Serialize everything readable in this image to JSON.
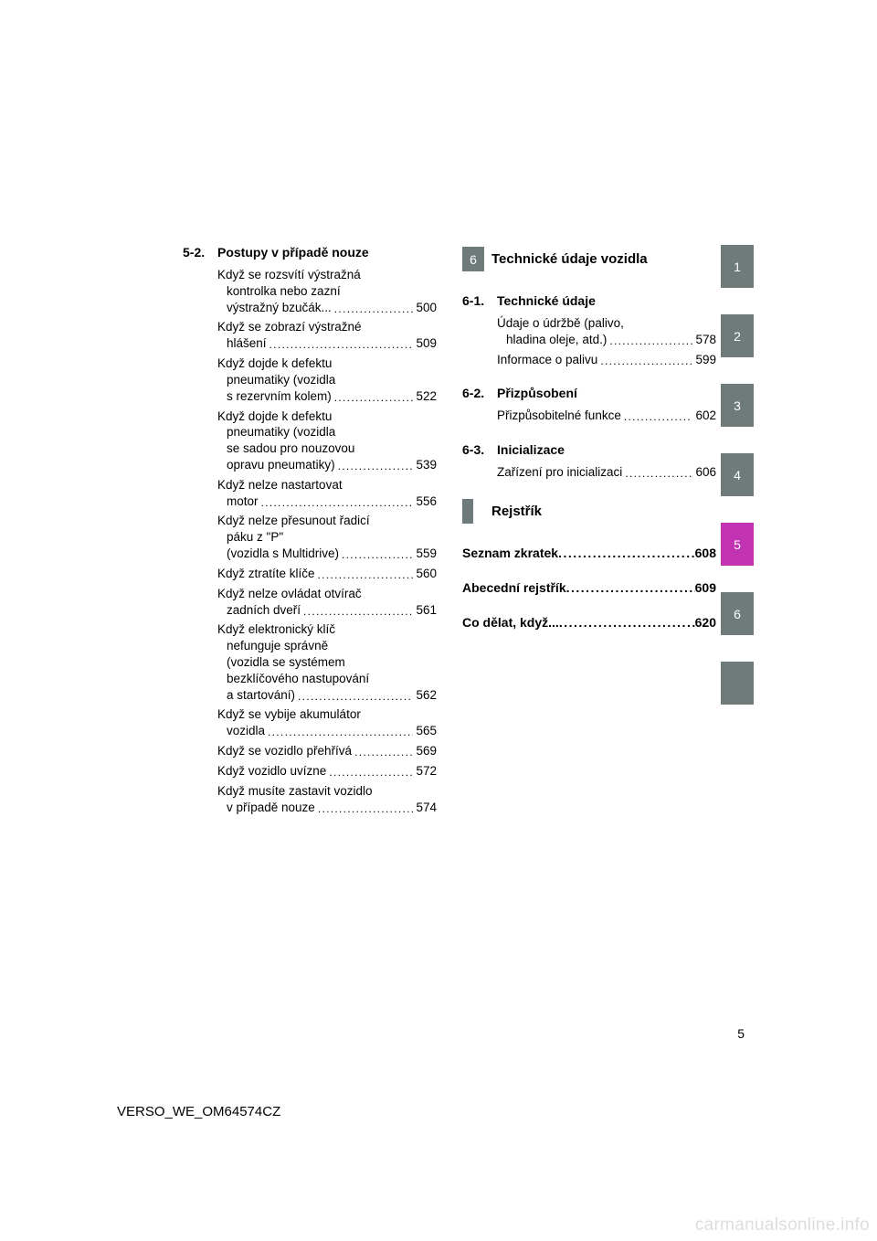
{
  "left": {
    "section": {
      "num": "5-2.",
      "title": "Postupy v případě nouze"
    },
    "entries": [
      {
        "lines": [
          "Když se rozsvítí výstražná",
          "kontrolka nebo zazní",
          "výstražný bzučák..."
        ],
        "page": "500"
      },
      {
        "lines": [
          "Když se zobrazí výstražné",
          "hlášení"
        ],
        "page": "509"
      },
      {
        "lines": [
          "Když dojde k defektu",
          "pneumatiky (vozidla",
          "s rezervním kolem)"
        ],
        "page": "522"
      },
      {
        "lines": [
          "Když dojde k defektu",
          "pneumatiky (vozidla",
          "se sadou pro nouzovou",
          "opravu pneumatiky)"
        ],
        "page": "539"
      },
      {
        "lines": [
          "Když nelze nastartovat",
          "motor"
        ],
        "page": "556"
      },
      {
        "lines": [
          "Když nelze přesunout řadicí",
          "páku z \"P\"",
          "(vozidla s Multidrive)"
        ],
        "page": "559"
      },
      {
        "lines": [
          "Když ztratíte klíče"
        ],
        "page": "560"
      },
      {
        "lines": [
          "Když nelze ovládat otvírač",
          "zadních dveří"
        ],
        "page": "561"
      },
      {
        "lines": [
          "Když elektronický klíč",
          "nefunguje správně",
          "(vozidla se systémem",
          "bezklíčového nastupování",
          "a startování)"
        ],
        "page": "562"
      },
      {
        "lines": [
          "Když se vybije akumulátor",
          "vozidla"
        ],
        "page": "565"
      },
      {
        "lines": [
          "Když se vozidlo přehřívá"
        ],
        "page": "569"
      },
      {
        "lines": [
          "Když vozidlo uvízne"
        ],
        "page": "572"
      },
      {
        "lines": [
          "Když musíte zastavit vozidlo",
          "v případě nouze"
        ],
        "page": "574"
      }
    ]
  },
  "right": {
    "chapter_banner": {
      "num": "6",
      "label": "Technické údaje vozidla"
    },
    "sections": [
      {
        "num": "6-1.",
        "title": "Technické údaje",
        "entries": [
          {
            "lines": [
              "Údaje o údržbě (palivo,",
              "hladina oleje, atd.)"
            ],
            "page": "578"
          },
          {
            "lines": [
              "Informace o palivu"
            ],
            "page": "599"
          }
        ]
      },
      {
        "num": "6-2.",
        "title": "Přizpůsobení",
        "entries": [
          {
            "lines": [
              "Přizpůsobitelné funkce"
            ],
            "page": "602"
          }
        ]
      },
      {
        "num": "6-3.",
        "title": "Inicializace",
        "entries": [
          {
            "lines": [
              "Zařízení pro inicializaci"
            ],
            "page": "606"
          }
        ]
      }
    ],
    "index_banner": "Rejstřík",
    "index_entries": [
      {
        "label": "Seznam zkratek",
        "page": "608"
      },
      {
        "label": "Abecední rejstřík",
        "page": "609"
      },
      {
        "label": "Co dělat, když...",
        "page": "620"
      }
    ]
  },
  "side_tabs": [
    {
      "n": "1",
      "color": "#6f7a7a"
    },
    {
      "n": "2",
      "color": "#6f7a7a"
    },
    {
      "n": "3",
      "color": "#6f7a7a"
    },
    {
      "n": "4",
      "color": "#6f7a7a"
    },
    {
      "n": "5",
      "color": "#c233b4"
    },
    {
      "n": "6",
      "color": "#6f7a7a"
    },
    {
      "n": "",
      "color": "#6f7a7a"
    }
  ],
  "page_number": "5",
  "doc_id": "VERSO_WE_OM64574CZ",
  "watermark": "carmanualsonline.info",
  "dot_run": "........................................................"
}
